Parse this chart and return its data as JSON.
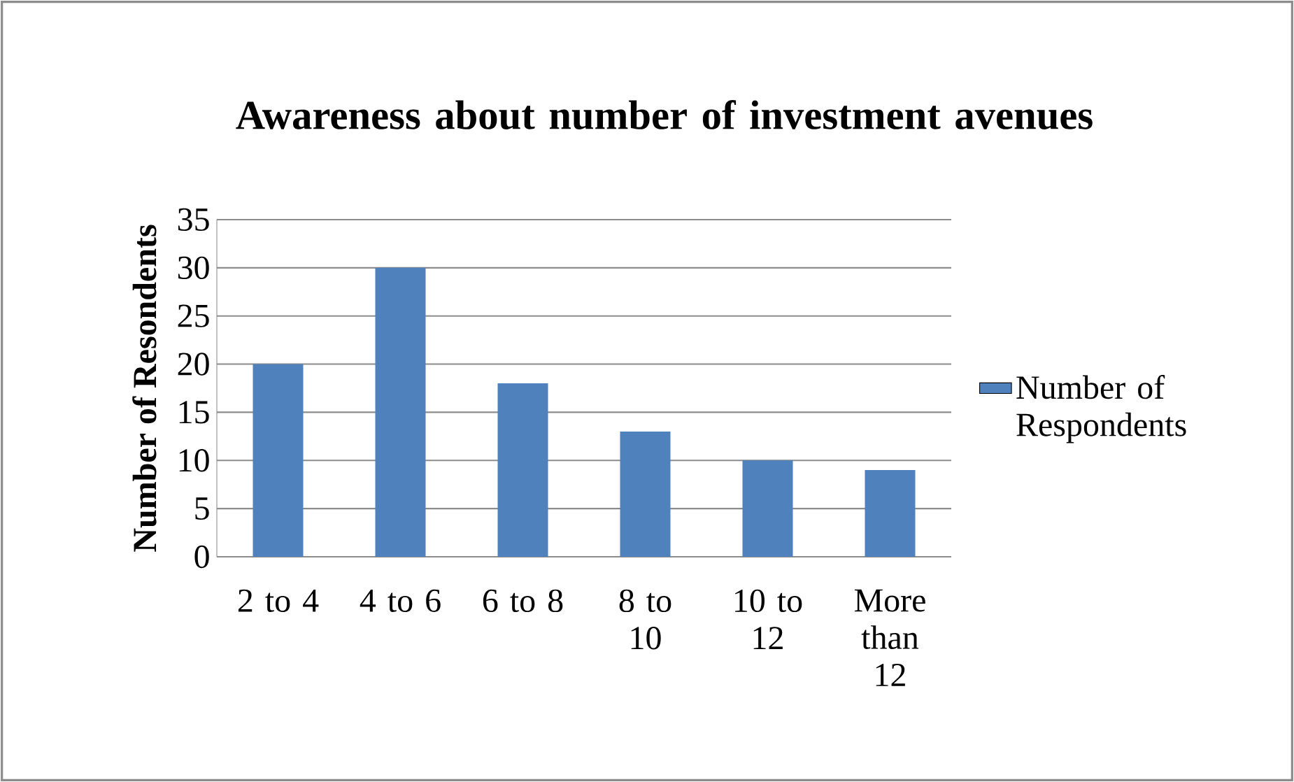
{
  "chart_data": {
    "type": "bar",
    "title": "Awareness about number of investment avenues",
    "ylabel": "Number of Resondents",
    "categories": [
      "2 to 4",
      "4 to 6",
      "6 to 8",
      "8 to 10",
      "10 to 12",
      "More than 12"
    ],
    "series": [
      {
        "name": "Number of Respondents",
        "color": "#4f81bd",
        "values": [
          20,
          30,
          18,
          13,
          10,
          9
        ]
      }
    ],
    "ylim": [
      0,
      35
    ],
    "yticks": [
      0,
      5,
      10,
      15,
      20,
      25,
      30,
      35
    ],
    "grid": "y",
    "legend": "right"
  }
}
